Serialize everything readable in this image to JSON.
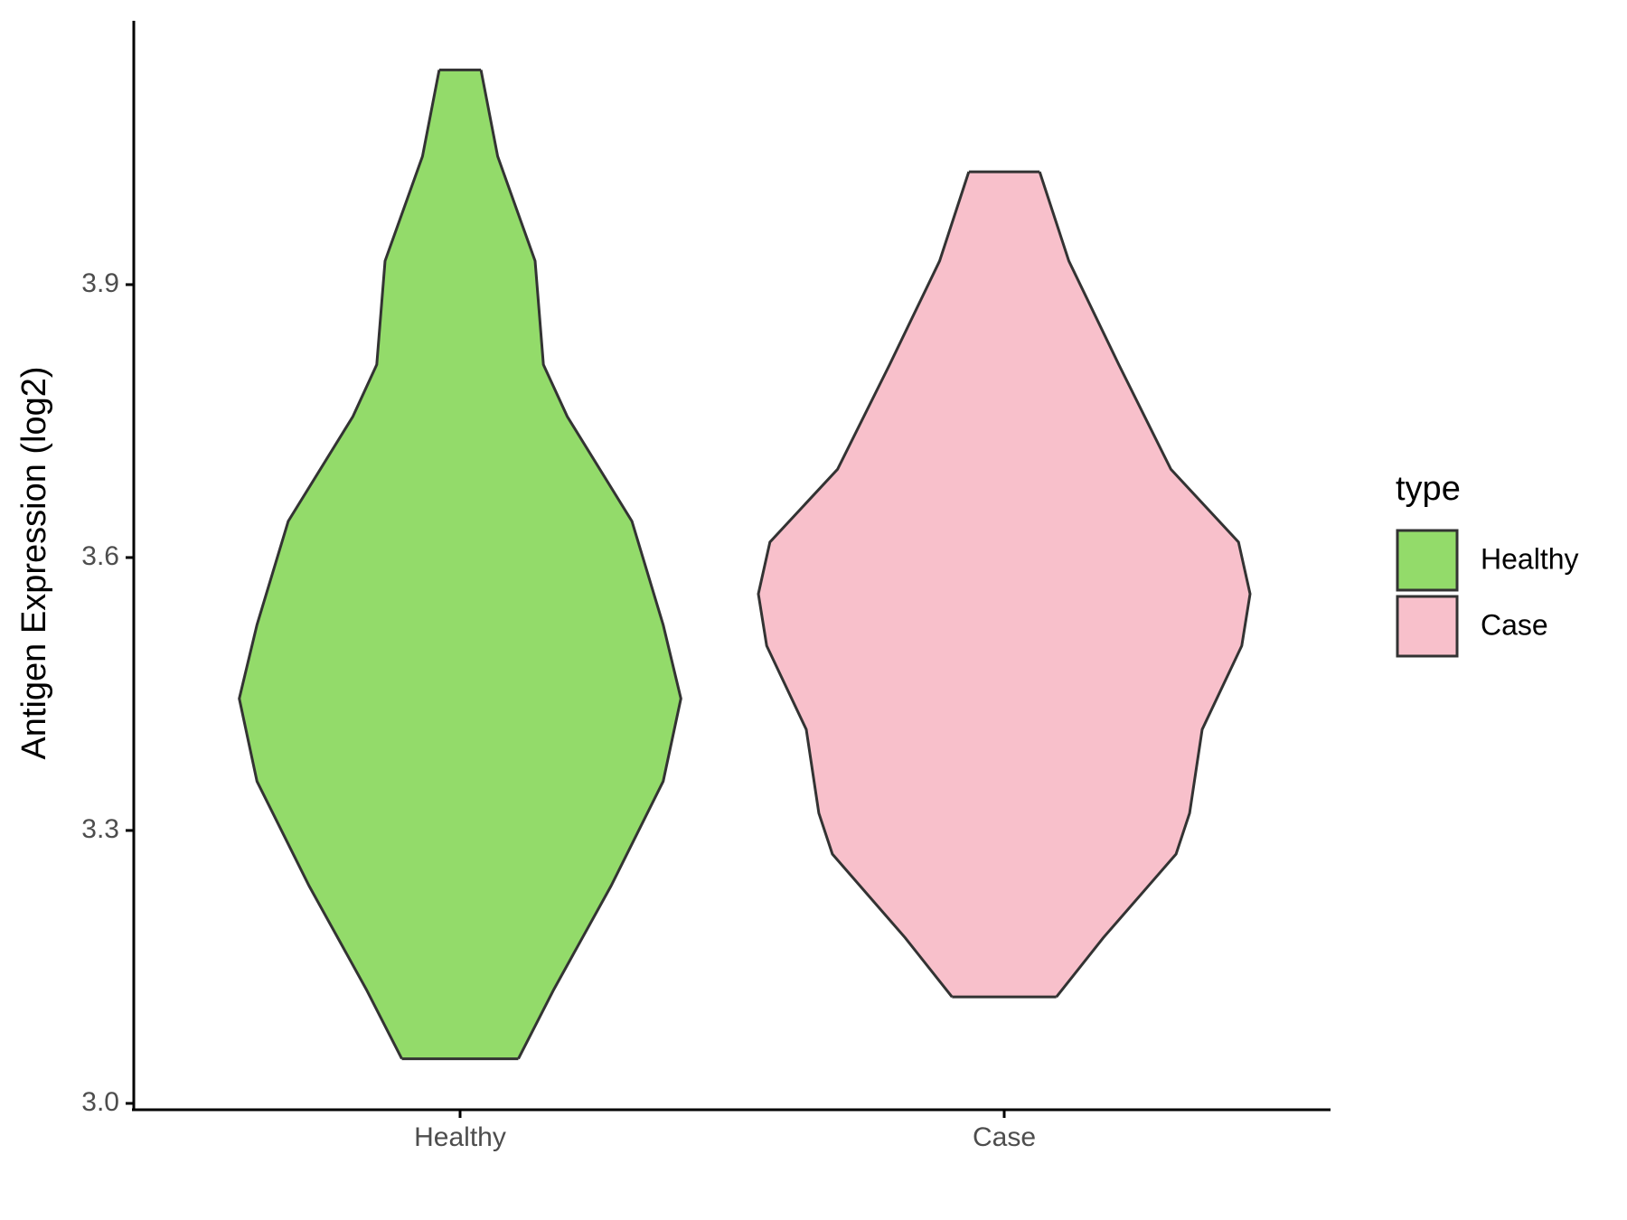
{
  "chart_data": {
    "type": "violin",
    "y_axis_label": "Antigen Expression (log2)",
    "categories": [
      "Healthy",
      "Case"
    ],
    "ylim": [
      2.995,
      4.19
    ],
    "yticks": [
      {
        "value": 3.0,
        "label": "3.0"
      },
      3.3,
      3.6,
      3.9
    ],
    "legend_title": "type",
    "legend_position": "right",
    "series": [
      {
        "name": "Healthy",
        "color": "#93db6a",
        "y": [
          4.136,
          4.041,
          3.926,
          3.812,
          3.755,
          3.64,
          3.526,
          3.445,
          3.354,
          3.239,
          3.125,
          3.049
        ],
        "density": [
          0.085,
          0.153,
          0.305,
          0.339,
          0.436,
          0.699,
          0.826,
          0.898,
          0.826,
          0.614,
          0.381,
          0.237
        ]
      },
      {
        "name": "Case",
        "color": "#f8c0cb",
        "y": [
          4.024,
          3.926,
          3.812,
          3.697,
          3.617,
          3.56,
          3.503,
          3.411,
          3.319,
          3.274,
          3.182,
          3.117
        ],
        "density": [
          0.144,
          0.263,
          0.466,
          0.678,
          0.953,
          1.0,
          0.966,
          0.805,
          0.754,
          0.699,
          0.403,
          0.212
        ]
      }
    ]
  }
}
